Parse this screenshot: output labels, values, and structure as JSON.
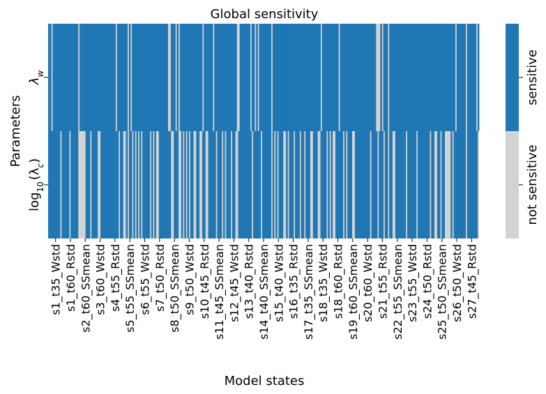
{
  "chart_data": {
    "type": "heatmap",
    "title": "Global sensitivity",
    "xlabel": "Model states",
    "ylabel": "Parameters",
    "rows": [
      {
        "id": "lambda_w",
        "label_main": "λ",
        "label_sub": "w"
      },
      {
        "id": "log10_lambda_c",
        "label_pre": "log",
        "label_sub": "10",
        "label_post": "(λ",
        "label_sub2": "c",
        "label_end": ")"
      }
    ],
    "x_ticklabels": [
      "s1_t35_Wstd",
      "s1_t60_Rstd",
      "s2_t60_SSmean",
      "s3_t60_Wstd",
      "s4_t55_Rstd",
      "s5_t55_SSmean",
      "s6_t55_Wstd",
      "s7_t50_Rstd",
      "s8_t50_SSmean",
      "s9_t50_Wstd",
      "s10_t45_Rstd",
      "s11_t45_SSmean",
      "s12_t45_Wstd",
      "s13_t40_Rstd",
      "s14_t40_SSmean",
      "s15_t40_Wstd",
      "s16_t35_Rstd",
      "s17_t35_SSmean",
      "s18_t35_Wstd",
      "s18_t60_Rstd",
      "s19_t60_SSmean",
      "s20_t60_Wstd",
      "s21_t55_Rstd",
      "s22_t55_SSmean",
      "s23_t55_Wstd",
      "s24_t50_Rstd",
      "s25_t50_SSmean",
      "s26_t50_Wstd",
      "s27_t45_Rstd"
    ],
    "n_columns": 288,
    "values": {
      "lambda_w_sensitive_fraction": 0.86,
      "log10_lambda_c_sensitive_fraction": 0.72,
      "lambda_w_solid_blocks": [
        [
          8,
          12
        ],
        [
          23,
          43
        ],
        [
          64,
          80
        ],
        [
          96,
          100
        ],
        [
          112,
          124
        ],
        [
          128,
          134
        ],
        [
          150,
          182
        ],
        [
          204,
          214
        ],
        [
          232,
          268
        ],
        [
          274,
          278
        ]
      ]
    },
    "colorbar": {
      "categories": [
        "not sensitive",
        "sensitive"
      ],
      "colors": [
        "#d3d3d3",
        "#1f77b4"
      ]
    },
    "grid": false,
    "legend": "colorbar-right"
  }
}
